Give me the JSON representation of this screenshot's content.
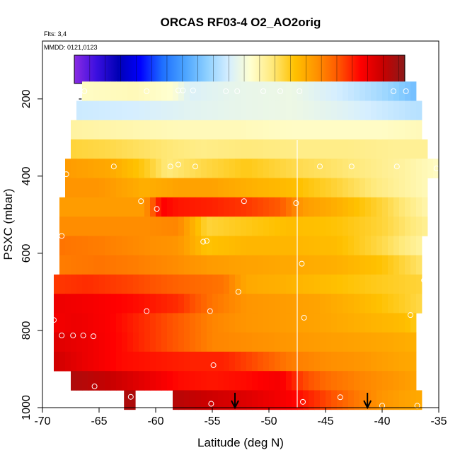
{
  "chart_data": {
    "type": "heatmap",
    "title": "ORCAS RF03-4 O2_AO2orig",
    "flights_label": "Flts: 3,4",
    "date_label": "MMDD: 0121,0123",
    "xlabel": "Latitude (deg N)",
    "ylabel": "PSXC (mbar)",
    "xlim": [
      -70,
      -35
    ],
    "ylim": [
      1000,
      50
    ],
    "x_ticks": [
      -70,
      -65,
      -60,
      -55,
      -50,
      -45,
      -40,
      -35
    ],
    "y_ticks": [
      200,
      400,
      600,
      800,
      1000
    ],
    "colorbar": {
      "range": [
        -625,
        -518
      ],
      "ticks": [
        -620,
        -600,
        -580,
        -560,
        -540,
        -520
      ],
      "colors": [
        "#8a2be2",
        "#3b0fe0",
        "#0000b4",
        "#0000ff",
        "#1e6fff",
        "#4aa3ff",
        "#8ccfff",
        "#d5eeff",
        "#ffffd0",
        "#ffe97a",
        "#ffc100",
        "#ff9200",
        "#ff5500",
        "#ff0000",
        "#c80000",
        "#8b1a1a"
      ]
    },
    "vertical_line_x": -47.5,
    "layers": [
      {
        "p": 180,
        "x0": -66.5,
        "x1": -37.0,
        "x": [
          -66.5,
          -62,
          -58.5,
          -57,
          -53,
          -48,
          -44,
          -40,
          -37
        ],
        "v": [
          -567,
          -566,
          -568,
          -574,
          -572,
          -571,
          -575,
          -580,
          -585
        ]
      },
      {
        "p": 230,
        "x0": -67.0,
        "x1": -36.5,
        "x": [
          -67,
          -62,
          -57,
          -53,
          -48,
          -44,
          -40,
          -37
        ],
        "v": [
          -576,
          -575,
          -573,
          -572,
          -571,
          -573,
          -576,
          -578
        ]
      },
      {
        "p": 280,
        "x0": -67.5,
        "x1": -36.5,
        "x": [
          -67.5,
          -63,
          -58,
          -53,
          -48,
          -44,
          -40,
          -36.5
        ],
        "v": [
          -564,
          -565,
          -566,
          -566,
          -567,
          -567,
          -567,
          -566
        ]
      },
      {
        "p": 330,
        "x0": -67.5,
        "x1": -36.0,
        "x": [
          -67.5,
          -64,
          -60,
          -56,
          -52,
          -47,
          -43,
          -39,
          -36
        ],
        "v": [
          -557,
          -558,
          -560,
          -562,
          -561,
          -562,
          -562,
          -563,
          -563
        ]
      },
      {
        "p": 380,
        "x0": -68.0,
        "x1": -35.0,
        "x": [
          -68,
          -64,
          -61,
          -59,
          -56,
          -52,
          -48,
          -44,
          -41,
          -38,
          -35
        ],
        "v": [
          -548,
          -550,
          -555,
          -561,
          -558,
          -555,
          -558,
          -560,
          -562,
          -564,
          -567
        ]
      },
      {
        "p": 430,
        "x0": -68.0,
        "x1": -36.0,
        "x": [
          -68,
          -65,
          -61,
          -58,
          -55,
          -52,
          -48,
          -44,
          -40,
          -36
        ],
        "v": [
          -547,
          -547,
          -551,
          -549,
          -549,
          -551,
          -553,
          -557,
          -562,
          -566
        ]
      },
      {
        "p": 480,
        "x0": -68.5,
        "x1": -36.0,
        "x": [
          -68.5,
          -65,
          -61,
          -59.5,
          -58,
          -55,
          -52,
          -49,
          -47,
          -44,
          -40,
          -36
        ],
        "v": [
          -548,
          -548,
          -548,
          -532,
          -534,
          -535,
          -537,
          -540,
          -548,
          -551,
          -557,
          -565
        ]
      },
      {
        "p": 530,
        "x0": -68.5,
        "x1": -36.0,
        "x": [
          -68.5,
          -65,
          -61,
          -58,
          -55.5,
          -52,
          -48,
          -44,
          -40,
          -36
        ],
        "v": [
          -546,
          -546,
          -546,
          -545,
          -557,
          -555,
          -553,
          -554,
          -557,
          -563
        ]
      },
      {
        "p": 580,
        "x0": -68.5,
        "x1": -36.5,
        "x": [
          -68.5,
          -65,
          -61,
          -58,
          -55.5,
          -52,
          -48,
          -44,
          -40,
          -36.5
        ],
        "v": [
          -543,
          -544,
          -546,
          -547,
          -554,
          -552,
          -552,
          -553,
          -558,
          -564
        ]
      },
      {
        "p": 630,
        "x0": -68.5,
        "x1": -36.5,
        "x": [
          -68.5,
          -65,
          -62,
          -58,
          -55,
          -52,
          -48,
          -44,
          -40,
          -36.5
        ],
        "v": [
          -544,
          -543,
          -544,
          -546,
          -548,
          -549,
          -550,
          -551,
          -554,
          -560
        ]
      },
      {
        "p": 680,
        "x0": -69.0,
        "x1": -36.5,
        "x": [
          -69,
          -66,
          -62,
          -58,
          -54,
          -52,
          -49,
          -45,
          -41,
          -36.5
        ],
        "v": [
          -537,
          -536,
          -538,
          -541,
          -543,
          -550,
          -551,
          -553,
          -555,
          -557
        ]
      },
      {
        "p": 730,
        "x0": -69.0,
        "x1": -36.5,
        "x": [
          -69,
          -66,
          -62,
          -58,
          -55,
          -52,
          -49,
          -46,
          -42,
          -38,
          -36.5
        ],
        "v": [
          -530,
          -531,
          -533,
          -536,
          -543,
          -547,
          -548,
          -549,
          -552,
          -556,
          -558
        ]
      },
      {
        "p": 780,
        "x0": -69.0,
        "x1": -37.0,
        "x": [
          -69,
          -67,
          -64,
          -61,
          -58,
          -55,
          -52,
          -49,
          -46,
          -42,
          -38,
          -37
        ],
        "v": [
          -531,
          -530,
          -532,
          -536,
          -540,
          -545,
          -547,
          -548,
          -549,
          -551,
          -553,
          -555
        ]
      },
      {
        "p": 830,
        "x0": -69.0,
        "x1": -37.0,
        "x": [
          -69,
          -66,
          -63,
          -61,
          -58,
          -55,
          -52,
          -49,
          -46,
          -42,
          -39,
          -37
        ],
        "v": [
          -528,
          -530,
          -533,
          -536,
          -540,
          -545,
          -546,
          -547,
          -548,
          -549,
          -550,
          -551
        ]
      },
      {
        "p": 880,
        "x0": -69.0,
        "x1": -37.0,
        "x": [
          -69,
          -66,
          -63,
          -60,
          -57,
          -54,
          -51,
          -48,
          -45,
          -42,
          -39,
          -37
        ],
        "v": [
          -526,
          -530,
          -533,
          -534,
          -535,
          -535,
          -539,
          -544,
          -546,
          -547,
          -549,
          -550
        ]
      },
      {
        "p": 930,
        "x0": -67.5,
        "x1": -37.0,
        "x": [
          -67.5,
          -64,
          -61,
          -58,
          -55,
          -52,
          -49,
          -47,
          -45,
          -42,
          -39,
          -37
        ],
        "v": [
          -522,
          -525,
          -529,
          -533,
          -534,
          -533,
          -531,
          -538,
          -542,
          -545,
          -547,
          -549
        ]
      },
      {
        "p": 980,
        "x0": -58.5,
        "x1": -36.5,
        "x": [
          -58.5,
          -55,
          -52,
          -50,
          -48,
          -46,
          -44,
          -42,
          -40,
          -38,
          -36.5
        ],
        "v": [
          -523,
          -526,
          -528,
          -530,
          -532,
          -536,
          -540,
          -544,
          -547,
          -549,
          -550
        ]
      },
      {
        "p": 980,
        "x0": -62.8,
        "x1": -61.8,
        "x": [
          -62.8,
          -61.8
        ],
        "v": [
          -522,
          -522
        ]
      }
    ],
    "points": [
      [
        -66.3,
        180
      ],
      [
        -60.8,
        180
      ],
      [
        -58.0,
        178
      ],
      [
        -57.6,
        178
      ],
      [
        -56.7,
        178
      ],
      [
        -53.8,
        180
      ],
      [
        -52.8,
        180
      ],
      [
        -50.5,
        180
      ],
      [
        -49.0,
        180
      ],
      [
        -47.3,
        180
      ],
      [
        -39.0,
        180
      ],
      [
        -37.9,
        180
      ],
      [
        -67.9,
        395
      ],
      [
        -63.7,
        375
      ],
      [
        -58.7,
        375
      ],
      [
        -58.0,
        370
      ],
      [
        -56.5,
        375
      ],
      [
        -45.5,
        375
      ],
      [
        -42.7,
        375
      ],
      [
        -38.7,
        375
      ],
      [
        -35.2,
        380
      ],
      [
        -61.3,
        465
      ],
      [
        -59.9,
        485
      ],
      [
        -52.2,
        465
      ],
      [
        -47.6,
        470
      ],
      [
        -68.3,
        555
      ],
      [
        -55.8,
        570
      ],
      [
        -55.5,
        568
      ],
      [
        -47.1,
        627
      ],
      [
        -36.3,
        670
      ],
      [
        -52.7,
        700
      ],
      [
        -60.8,
        750
      ],
      [
        -55.2,
        750
      ],
      [
        -69.0,
        773
      ],
      [
        -46.9,
        767
      ],
      [
        -68.3,
        813
      ],
      [
        -67.3,
        813
      ],
      [
        -66.4,
        813
      ],
      [
        -65.5,
        815
      ],
      [
        -36.7,
        823
      ],
      [
        -54.9,
        890
      ],
      [
        -37.5,
        760
      ],
      [
        -65.4,
        945
      ],
      [
        -62.2,
        972
      ],
      [
        -55.1,
        990
      ],
      [
        -47.0,
        985
      ],
      [
        -43.7,
        973
      ],
      [
        -40.0,
        995
      ],
      [
        -36.9,
        995
      ]
    ],
    "arrows": [
      -53.0,
      -41.3
    ]
  }
}
